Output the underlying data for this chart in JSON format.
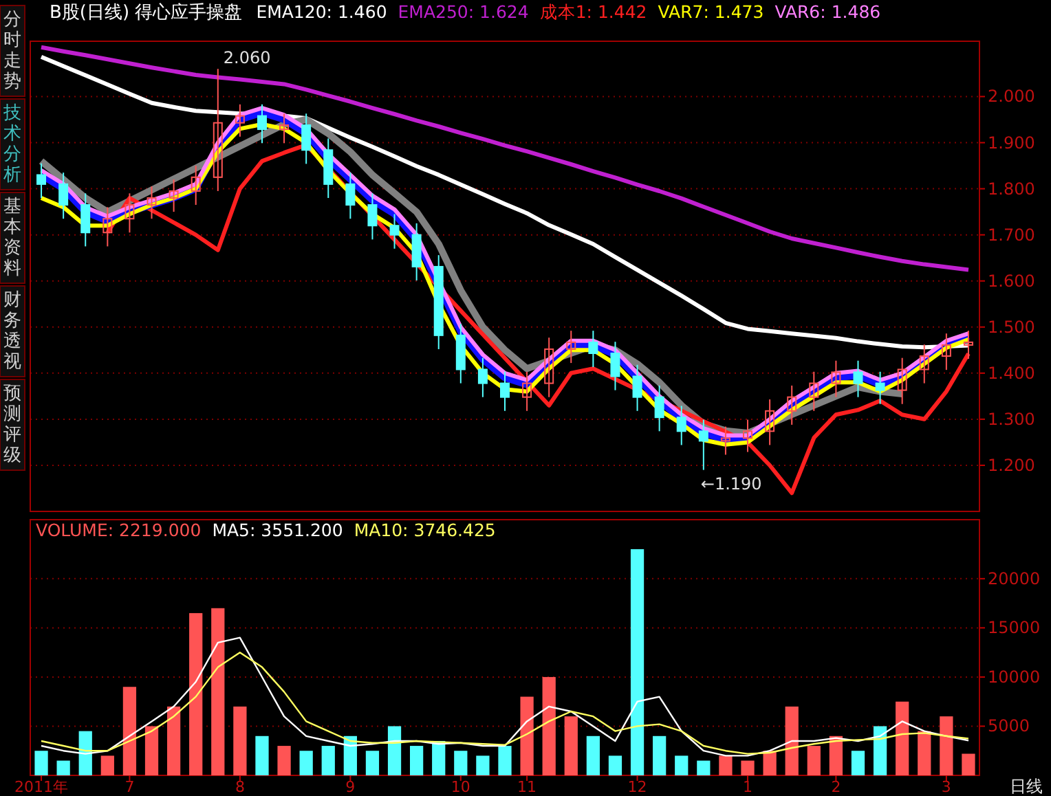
{
  "chart_data": [
    {
      "type": "candlestick",
      "title": "B股(日线) 得心应手操盘",
      "categories": [
        null,
        null,
        null,
        null,
        null,
        null,
        null,
        null,
        null,
        null,
        null,
        null,
        null,
        null,
        null,
        null,
        null,
        null,
        null,
        null,
        null,
        null,
        null,
        null,
        null,
        null,
        null,
        null,
        null,
        null,
        null,
        null,
        null,
        null,
        null,
        null,
        null,
        null,
        null,
        null,
        null,
        null,
        null
      ],
      "ohlc": [
        [
          1.83,
          1.855,
          1.78,
          1.81
        ],
        [
          1.81,
          1.835,
          1.735,
          1.765
        ],
        [
          1.765,
          1.79,
          1.675,
          1.705
        ],
        [
          1.705,
          1.76,
          1.675,
          1.735
        ],
        [
          1.735,
          1.79,
          1.705,
          1.765
        ],
        [
          1.765,
          1.805,
          1.735,
          1.78
        ],
        [
          1.78,
          1.82,
          1.75,
          1.795
        ],
        [
          1.795,
          1.85,
          1.765,
          1.825
        ],
        [
          1.825,
          2.06,
          1.795,
          1.943
        ],
        [
          1.943,
          1.983,
          1.913,
          1.958
        ],
        [
          1.958,
          1.983,
          1.899,
          1.929
        ],
        [
          1.929,
          1.963,
          1.899,
          1.938
        ],
        [
          1.938,
          1.963,
          1.854,
          1.884
        ],
        [
          1.884,
          1.909,
          1.78,
          1.81
        ],
        [
          1.81,
          1.835,
          1.735,
          1.765
        ],
        [
          1.765,
          1.79,
          1.69,
          1.72
        ],
        [
          1.72,
          1.745,
          1.67,
          1.7
        ],
        [
          1.7,
          1.725,
          1.601,
          1.631
        ],
        [
          1.631,
          1.656,
          1.452,
          1.482
        ],
        [
          1.482,
          1.507,
          1.378,
          1.408
        ],
        [
          1.408,
          1.433,
          1.348,
          1.378
        ],
        [
          1.378,
          1.403,
          1.318,
          1.348
        ],
        [
          1.348,
          1.403,
          1.318,
          1.378
        ],
        [
          1.378,
          1.477,
          1.348,
          1.452
        ],
        [
          1.452,
          1.492,
          1.422,
          1.467
        ],
        [
          1.467,
          1.492,
          1.413,
          1.443
        ],
        [
          1.443,
          1.468,
          1.363,
          1.393
        ],
        [
          1.393,
          1.418,
          1.318,
          1.348
        ],
        [
          1.348,
          1.373,
          1.274,
          1.304
        ],
        [
          1.304,
          1.329,
          1.244,
          1.274
        ],
        [
          1.274,
          1.299,
          1.19,
          1.253
        ],
        [
          1.253,
          1.284,
          1.223,
          1.259
        ],
        [
          1.259,
          1.299,
          1.229,
          1.274
        ],
        [
          1.274,
          1.343,
          1.244,
          1.318
        ],
        [
          1.318,
          1.373,
          1.288,
          1.348
        ],
        [
          1.348,
          1.403,
          1.318,
          1.378
        ],
        [
          1.378,
          1.427,
          1.348,
          1.402
        ],
        [
          1.402,
          1.427,
          1.348,
          1.378
        ],
        [
          1.378,
          1.403,
          1.333,
          1.363
        ],
        [
          1.363,
          1.433,
          1.333,
          1.408
        ],
        [
          1.408,
          1.462,
          1.378,
          1.437
        ],
        [
          1.437,
          1.486,
          1.407,
          1.461
        ],
        [
          1.461,
          1.492,
          1.431,
          1.467
        ]
      ],
      "colors": [
        "#54ffff",
        "#54ffff",
        "#54ffff",
        "#ff5454",
        "#ff5454",
        "#ff5454",
        "#ff5454",
        "#ff5454",
        "#ff5454",
        "#ff5454",
        "#54ffff",
        "#ff5454",
        "#54ffff",
        "#54ffff",
        "#54ffff",
        "#54ffff",
        "#54ffff",
        "#54ffff",
        "#54ffff",
        "#54ffff",
        "#54ffff",
        "#54ffff",
        "#ff5454",
        "#ff5454",
        "#ff5454",
        "#54ffff",
        "#54ffff",
        "#54ffff",
        "#54ffff",
        "#54ffff",
        "#54ffff",
        "#ff5454",
        "#ff5454",
        "#ff5454",
        "#ff5454",
        "#ff5454",
        "#ff5454",
        "#54ffff",
        "#54ffff",
        "#ff5454",
        "#ff5454",
        "#ff5454",
        "#ff5454"
      ],
      "series": [
        {
          "name": "EMA120: 1.460",
          "type": "line",
          "color": "#ffffff",
          "values": [
            2.086,
            2.066,
            2.046,
            2.026,
            2.006,
            1.986,
            1.977,
            1.969,
            1.966,
            1.963,
            1.961,
            1.958,
            1.953,
            1.932,
            1.911,
            1.891,
            1.87,
            1.849,
            1.83,
            1.809,
            1.788,
            1.767,
            1.747,
            1.721,
            1.701,
            1.68,
            1.652,
            1.624,
            1.596,
            1.568,
            1.539,
            1.509,
            1.496,
            1.491,
            1.486,
            1.481,
            1.476,
            1.469,
            1.463,
            1.458,
            1.456,
            1.458,
            1.46
          ]
        },
        {
          "name": "EMA250: 1.624",
          "type": "line",
          "color": "#c020d0",
          "values": [
            2.107,
            2.098,
            2.09,
            2.081,
            2.072,
            2.063,
            2.055,
            2.047,
            2.042,
            2.037,
            2.032,
            2.027,
            2.015,
            2.002,
            1.989,
            1.975,
            1.962,
            1.948,
            1.935,
            1.921,
            1.908,
            1.894,
            1.881,
            1.867,
            1.853,
            1.838,
            1.824,
            1.809,
            1.795,
            1.779,
            1.761,
            1.743,
            1.725,
            1.707,
            1.692,
            1.682,
            1.672,
            1.662,
            1.652,
            1.643,
            1.636,
            1.63,
            1.624
          ]
        },
        {
          "type": "line",
          "color": "#808080",
          "values": [
            1.86,
            1.82,
            1.78,
            1.75,
            null,
            null,
            null,
            null,
            null,
            null,
            null,
            1.94,
            1.95,
            1.92,
            1.88,
            1.83,
            1.79,
            1.75,
            1.68,
            1.58,
            1.5,
            1.45,
            1.41,
            null,
            null,
            1.46,
            1.45,
            1.42,
            1.38,
            1.33,
            1.29,
            1.275,
            1.27,
            null,
            null,
            null,
            null,
            1.37,
            1.36,
            1.355,
            null,
            null,
            null
          ]
        },
        {
          "name": "成本1: 1.442",
          "type": "line",
          "color": "#ff2020",
          "values": [
            null,
            null,
            null,
            1.705,
            1.78,
            null,
            null,
            1.7,
            1.667,
            1.8,
            1.86,
            1.878,
            1.895,
            null,
            null,
            null,
            null,
            null,
            null,
            null,
            null,
            null,
            null,
            1.33,
            1.4,
            1.41,
            null,
            null,
            null,
            null,
            null,
            null,
            1.25,
            1.2,
            1.14,
            1.26,
            1.31,
            1.32,
            1.34,
            1.31,
            1.3,
            1.36,
            1.442
          ]
        },
        {
          "type": "line",
          "color": "#1010ff",
          "values": [
            1.83,
            1.8,
            1.75,
            1.73,
            1.75,
            1.765,
            1.78,
            1.8,
            1.89,
            1.95,
            1.965,
            1.95,
            1.92,
            1.865,
            1.82,
            1.775,
            1.745,
            1.69,
            1.59,
            1.49,
            1.43,
            1.39,
            1.375,
            1.42,
            1.46,
            1.46,
            1.44,
            1.39,
            1.34,
            1.3,
            1.27,
            1.255,
            1.255,
            1.29,
            1.33,
            1.36,
            1.39,
            1.395,
            1.375,
            1.39,
            1.425,
            1.46,
            1.48
          ]
        },
        {
          "name": "VAR7: 1.473",
          "type": "line",
          "color": "#ffff00",
          "values": [
            1.78,
            1.76,
            1.72,
            1.72,
            1.745,
            1.765,
            1.78,
            1.8,
            1.88,
            1.93,
            1.94,
            1.93,
            1.9,
            1.84,
            1.79,
            1.745,
            1.715,
            1.66,
            1.55,
            1.46,
            1.4,
            1.365,
            1.36,
            1.41,
            1.45,
            1.45,
            1.42,
            1.37,
            1.32,
            1.29,
            1.255,
            1.245,
            1.25,
            1.285,
            1.32,
            1.35,
            1.38,
            1.38,
            1.36,
            1.385,
            1.42,
            1.455,
            1.473
          ]
        },
        {
          "name": "VAR6: 1.486",
          "type": "line",
          "color": "#ff80ff",
          "values": [
            1.84,
            1.81,
            1.76,
            1.74,
            1.76,
            1.775,
            1.79,
            1.81,
            1.9,
            1.96,
            1.975,
            1.96,
            1.93,
            1.875,
            1.83,
            1.785,
            1.755,
            1.7,
            null,
            1.5,
            1.44,
            1.4,
            1.385,
            1.43,
            1.47,
            1.47,
            1.45,
            1.4,
            1.35,
            1.31,
            1.28,
            1.265,
            1.265,
            1.3,
            1.34,
            1.37,
            1.4,
            1.405,
            1.385,
            1.4,
            1.435,
            1.47,
            1.486
          ]
        }
      ],
      "ylim": [
        1.1,
        2.12
      ],
      "yticks": [
        {
          "value": 1.2,
          "label": "1.200"
        },
        {
          "value": 1.3,
          "label": "1.300"
        },
        {
          "value": 1.4,
          "label": "1.400"
        },
        {
          "value": 1.5,
          "label": "1.500"
        },
        {
          "value": 1.6,
          "label": "1.600"
        },
        {
          "value": 1.7,
          "label": "1.700"
        },
        {
          "value": 1.8,
          "label": "1.800"
        },
        {
          "value": 1.9,
          "label": "1.900"
        },
        {
          "value": 2.0,
          "label": "2.000"
        }
      ],
      "grid": "y",
      "tick_labels": "y",
      "annotations": [
        "2.060",
        "←1.190",
        "分时走势",
        "技术分析",
        "基本资料",
        "财务透视",
        "预测评级"
      ]
    },
    {
      "type": "bar",
      "categories": [
        "2011年",
        null,
        null,
        null,
        "7",
        null,
        null,
        null,
        null,
        "8",
        null,
        null,
        null,
        null,
        "9",
        null,
        null,
        null,
        null,
        "10",
        null,
        null,
        "11",
        null,
        null,
        null,
        null,
        "12",
        null,
        null,
        null,
        null,
        "1",
        null,
        null,
        null,
        "2",
        null,
        null,
        null,
        null,
        "3",
        null
      ],
      "series": [
        {
          "name": "VOLUME: 2219.000",
          "type": "bar",
          "color": "#ff5454",
          "colors": [
            "#54ffff",
            "#54ffff",
            "#54ffff",
            "#ff5454",
            "#ff5454",
            "#ff5454",
            "#ff5454",
            "#ff5454",
            "#ff5454",
            "#ff5454",
            "#54ffff",
            "#ff5454",
            "#54ffff",
            "#54ffff",
            "#54ffff",
            "#54ffff",
            "#54ffff",
            "#54ffff",
            "#54ffff",
            "#54ffff",
            "#54ffff",
            "#54ffff",
            "#ff5454",
            "#ff5454",
            "#ff5454",
            "#54ffff",
            "#54ffff",
            "#54ffff",
            "#54ffff",
            "#54ffff",
            "#54ffff",
            "#ff5454",
            "#ff5454",
            "#ff5454",
            "#ff5454",
            "#ff5454",
            "#ff5454",
            "#54ffff",
            "#54ffff",
            "#ff5454",
            "#ff5454",
            "#ff5454",
            "#ff5454"
          ],
          "values": [
            2500,
            1500,
            4500,
            2000,
            9000,
            5000,
            7000,
            16500,
            17000,
            7000,
            4000,
            3000,
            2500,
            3000,
            4000,
            2500,
            5000,
            3000,
            3500,
            2500,
            2000,
            3000,
            8000,
            10000,
            6000,
            4000,
            2000,
            23000,
            4000,
            2000,
            1500,
            2000,
            1500,
            2500,
            7000,
            3000,
            4000,
            2500,
            5000,
            7500,
            4500,
            6000,
            2200
          ]
        },
        {
          "name": "MA5: 3551.200",
          "type": "line",
          "color": "#ffffff",
          "values": [
            3000,
            2500,
            2200,
            2500,
            4000,
            5500,
            7000,
            9500,
            13500,
            14000,
            10000,
            6000,
            4000,
            3500,
            3000,
            3200,
            3500,
            3500,
            3200,
            3300,
            3000,
            3000,
            5500,
            7000,
            6500,
            5000,
            3500,
            7500,
            8000,
            4500,
            2500,
            2000,
            2000,
            2500,
            3500,
            3500,
            3800,
            3500,
            4000,
            5500,
            4500,
            4000,
            3550
          ]
        },
        {
          "name": "MA10: 3746.425",
          "type": "line",
          "color": "#ffff60",
          "values": [
            3500,
            3000,
            2500,
            2500,
            3500,
            4500,
            6000,
            8000,
            11000,
            12500,
            11000,
            8500,
            5500,
            4500,
            3500,
            3300,
            3300,
            3500,
            3400,
            3300,
            3200,
            3100,
            4200,
            5500,
            6500,
            6000,
            4500,
            5000,
            5200,
            4500,
            3000,
            2500,
            2200,
            2300,
            2800,
            3200,
            3500,
            3600,
            3700,
            4200,
            4300,
            4000,
            3750
          ]
        }
      ],
      "ylim": [
        0,
        26000
      ],
      "yticks": [
        5000,
        10000,
        15000,
        20000
      ],
      "grid": "y",
      "annotations": [
        "日线"
      ]
    }
  ]
}
